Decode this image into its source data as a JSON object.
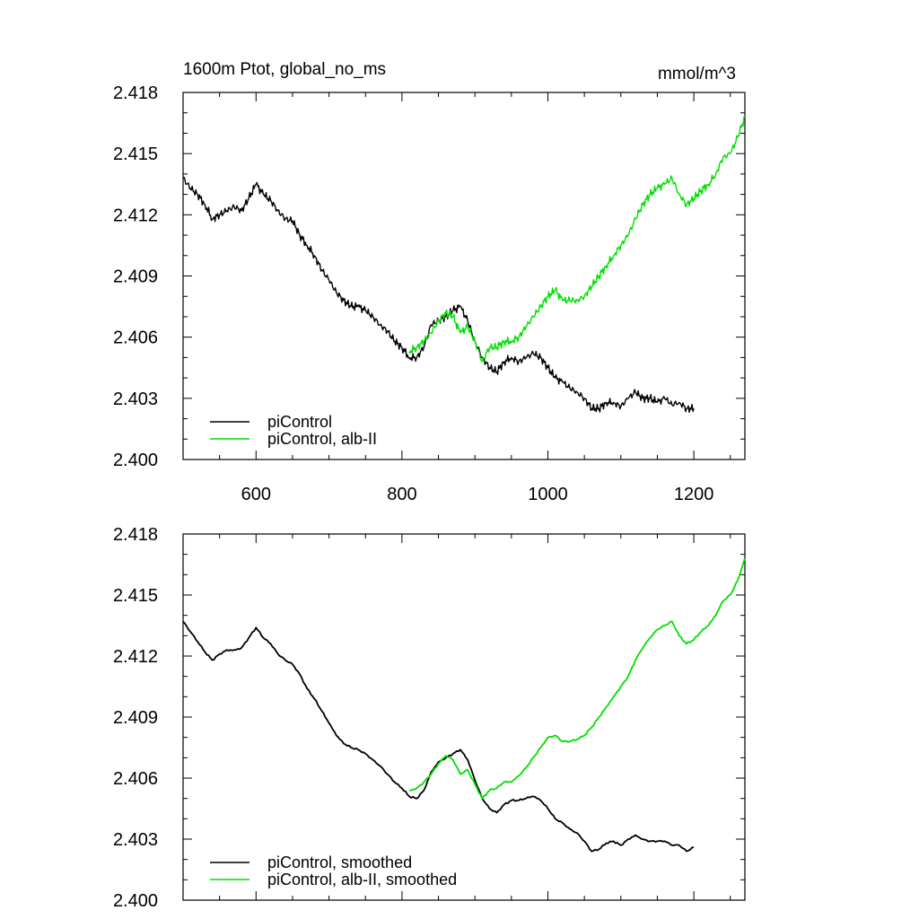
{
  "chart_data": [
    {
      "type": "line",
      "title": "1600m Ptot, global_no_ms",
      "units": "mmol/m^3",
      "xlabel": "",
      "ylabel": "",
      "xlim": [
        500,
        1270
      ],
      "ylim": [
        2.4,
        2.418
      ],
      "xticks": [
        600,
        800,
        1000,
        1200
      ],
      "yticks": [
        "2.400",
        "2.403",
        "2.406",
        "2.409",
        "2.412",
        "2.415",
        "2.418"
      ],
      "legend": "bottom-left",
      "grid": false,
      "series": [
        {
          "name": "piControl",
          "color": "#000000",
          "x": [
            500,
            510,
            520,
            530,
            540,
            550,
            560,
            570,
            580,
            590,
            600,
            610,
            620,
            630,
            640,
            650,
            660,
            670,
            680,
            690,
            700,
            710,
            720,
            730,
            740,
            750,
            760,
            770,
            780,
            790,
            800,
            810,
            820,
            830,
            840,
            850,
            860,
            870,
            880,
            890,
            900,
            910,
            920,
            930,
            940,
            950,
            960,
            970,
            980,
            990,
            1000,
            1010,
            1020,
            1030,
            1040,
            1050,
            1060,
            1070,
            1080,
            1090,
            1100,
            1110,
            1120,
            1130,
            1140,
            1150,
            1160,
            1170,
            1180,
            1190,
            1200
          ],
          "values": [
            2.4138,
            2.4133,
            2.413,
            2.4125,
            2.4118,
            2.412,
            2.4122,
            2.4124,
            2.4122,
            2.4128,
            2.4135,
            2.413,
            2.4127,
            2.4122,
            2.4118,
            2.4117,
            2.411,
            2.4105,
            2.41,
            2.4093,
            2.4088,
            2.4082,
            2.4078,
            2.4075,
            2.4075,
            2.4073,
            2.407,
            2.4066,
            2.4063,
            2.4058,
            2.4055,
            2.405,
            2.405,
            2.4055,
            2.4066,
            2.4068,
            2.407,
            2.4073,
            2.4075,
            2.4068,
            2.4058,
            2.405,
            2.4045,
            2.4043,
            2.4048,
            2.405,
            2.4048,
            2.405,
            2.4052,
            2.405,
            2.4045,
            2.404,
            2.4038,
            2.4035,
            2.4033,
            2.403,
            2.4025,
            2.4025,
            2.4028,
            2.4028,
            2.4026,
            2.403,
            2.4033,
            2.403,
            2.403,
            2.4028,
            2.403,
            2.4027,
            2.4028,
            2.4025,
            2.4025
          ]
        },
        {
          "name": "piControl, alb-II",
          "color": "#00e000",
          "x": [
            810,
            820,
            830,
            840,
            850,
            860,
            870,
            880,
            890,
            900,
            910,
            920,
            930,
            940,
            950,
            960,
            970,
            980,
            990,
            1000,
            1010,
            1020,
            1030,
            1040,
            1050,
            1060,
            1070,
            1080,
            1090,
            1100,
            1110,
            1120,
            1130,
            1140,
            1150,
            1160,
            1170,
            1180,
            1190,
            1200,
            1210,
            1220,
            1230,
            1240,
            1250,
            1260,
            1270
          ],
          "values": [
            2.4053,
            2.4055,
            2.4058,
            2.4062,
            2.4068,
            2.4072,
            2.407,
            2.4062,
            2.4065,
            2.4058,
            2.4048,
            2.4055,
            2.4055,
            2.4058,
            2.4058,
            2.406,
            2.4065,
            2.407,
            2.4075,
            2.408,
            2.4083,
            2.4078,
            2.4078,
            2.4078,
            2.408,
            2.4085,
            2.409,
            2.4095,
            2.41,
            2.4105,
            2.411,
            2.4118,
            2.4125,
            2.413,
            2.4133,
            2.4135,
            2.4138,
            2.413,
            2.4125,
            2.4128,
            2.4132,
            2.4135,
            2.414,
            2.4148,
            2.415,
            2.4158,
            2.4168
          ]
        }
      ]
    },
    {
      "type": "line",
      "title": "",
      "xlabel": "",
      "ylabel": "",
      "xlim": [
        500,
        1270
      ],
      "ylim": [
        2.4,
        2.418
      ],
      "yticks": [
        "2.400",
        "2.403",
        "2.406",
        "2.409",
        "2.412",
        "2.415",
        "2.418"
      ],
      "legend": "bottom-left",
      "grid": false,
      "series": [
        {
          "name": "piControl, smoothed",
          "color": "#000000",
          "x": [
            500,
            510,
            520,
            530,
            540,
            550,
            560,
            570,
            580,
            590,
            600,
            610,
            620,
            630,
            640,
            650,
            660,
            670,
            680,
            690,
            700,
            710,
            720,
            730,
            740,
            750,
            760,
            770,
            780,
            790,
            800,
            810,
            820,
            830,
            840,
            850,
            860,
            870,
            880,
            890,
            900,
            910,
            920,
            930,
            940,
            950,
            960,
            970,
            980,
            990,
            1000,
            1010,
            1020,
            1030,
            1040,
            1050,
            1060,
            1070,
            1080,
            1090,
            1100,
            1110,
            1120,
            1130,
            1140,
            1150,
            1160,
            1170,
            1180,
            1190,
            1200
          ],
          "values": [
            2.4137,
            2.4132,
            2.4127,
            2.4122,
            2.4118,
            2.4121,
            2.4123,
            2.4123,
            2.4124,
            2.4129,
            2.4134,
            2.4129,
            2.4126,
            2.4121,
            2.4118,
            2.4116,
            2.4111,
            2.4104,
            2.4099,
            2.4093,
            2.4087,
            2.4081,
            2.4077,
            2.4075,
            2.4074,
            2.4072,
            2.4069,
            2.4066,
            2.4062,
            2.4058,
            2.4055,
            2.4051,
            2.405,
            2.4054,
            2.4063,
            2.4068,
            2.407,
            2.4072,
            2.4074,
            2.4069,
            2.4059,
            2.405,
            2.4045,
            2.4043,
            2.4047,
            2.4049,
            2.4049,
            2.405,
            2.4051,
            2.4049,
            2.4045,
            2.404,
            2.4038,
            2.4035,
            2.4033,
            2.4029,
            2.4024,
            2.4025,
            2.4028,
            2.4029,
            2.4027,
            2.403,
            2.4032,
            2.403,
            2.4029,
            2.4029,
            2.4029,
            2.4027,
            2.4027,
            2.4024,
            2.4026
          ]
        },
        {
          "name": "piControl, alb-II, smoothed",
          "color": "#00e000",
          "x": [
            810,
            820,
            830,
            840,
            850,
            860,
            870,
            880,
            890,
            900,
            910,
            920,
            930,
            940,
            950,
            960,
            970,
            980,
            990,
            1000,
            1010,
            1020,
            1030,
            1040,
            1050,
            1060,
            1070,
            1080,
            1090,
            1100,
            1110,
            1120,
            1130,
            1140,
            1150,
            1160,
            1170,
            1180,
            1190,
            1200,
            1210,
            1220,
            1230,
            1240,
            1250,
            1260,
            1270
          ],
          "values": [
            2.4054,
            2.4055,
            2.4058,
            2.4062,
            2.4067,
            2.4071,
            2.4069,
            2.4062,
            2.4064,
            2.4057,
            2.405,
            2.4054,
            2.4055,
            2.4058,
            2.4058,
            2.4061,
            2.4065,
            2.407,
            2.4075,
            2.408,
            2.4081,
            2.4078,
            2.4078,
            2.4079,
            2.4081,
            2.4085,
            2.409,
            2.4095,
            2.41,
            2.4105,
            2.411,
            2.4118,
            2.4124,
            2.4129,
            2.4133,
            2.4135,
            2.4137,
            2.413,
            2.4126,
            2.4128,
            2.4132,
            2.4135,
            2.414,
            2.4147,
            2.415,
            2.4157,
            2.4168
          ]
        }
      ]
    }
  ]
}
